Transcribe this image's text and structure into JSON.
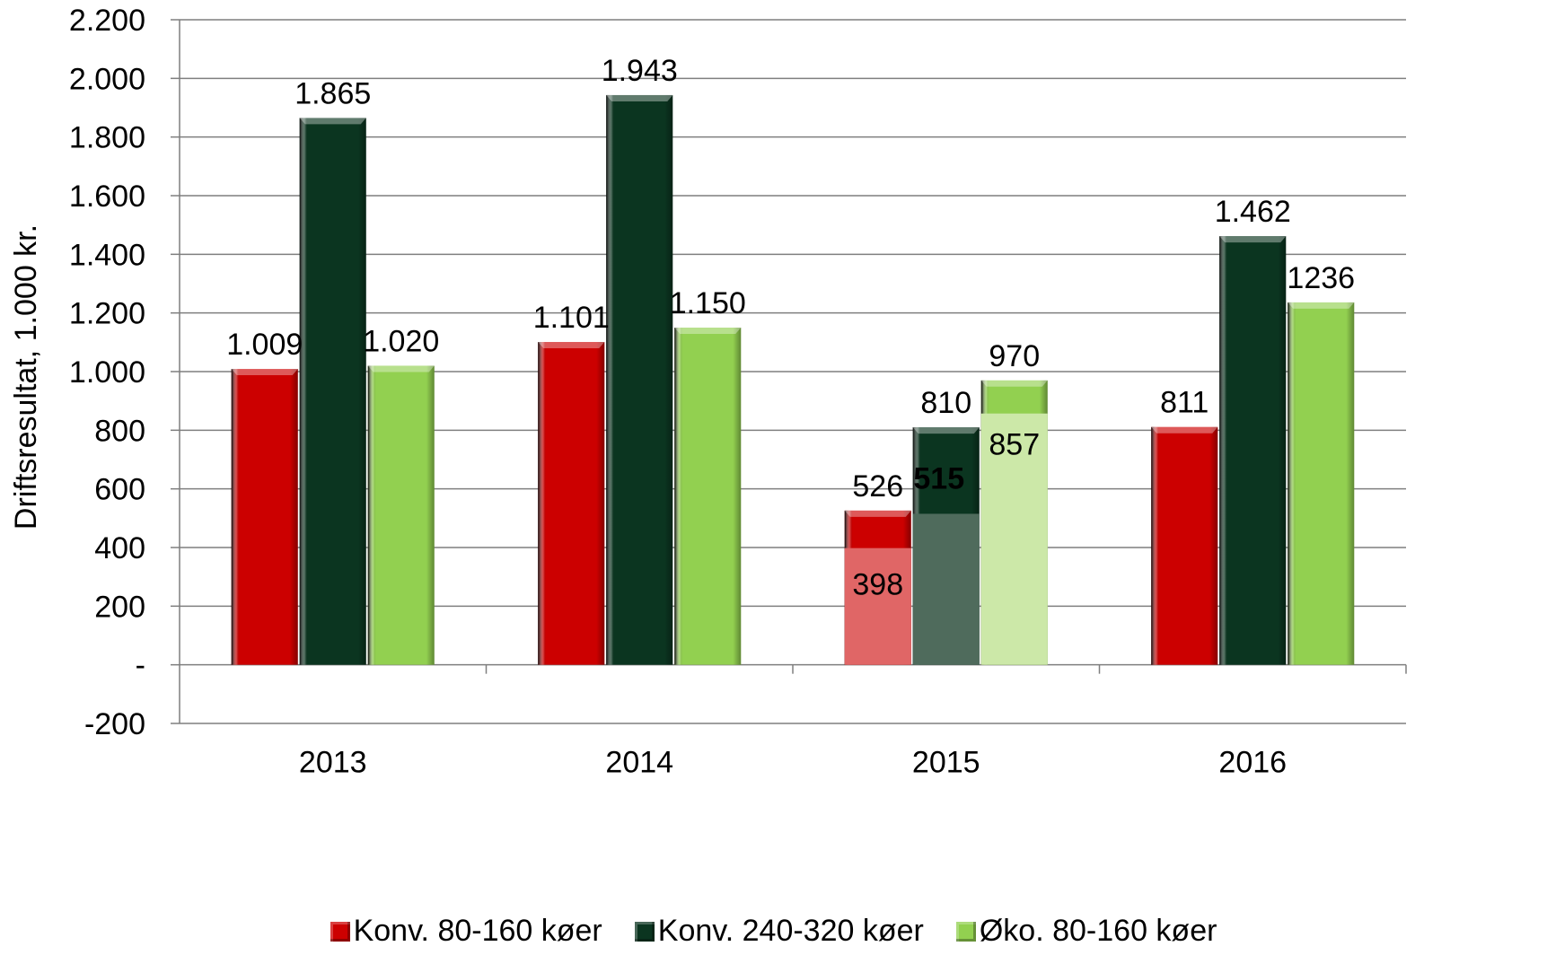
{
  "chart_data": {
    "type": "bar",
    "ylabel": "Driftsresultat, 1.000 kr.",
    "xlabel": "",
    "title": "",
    "ylim": [
      -200,
      2200
    ],
    "yticks": [
      {
        "value": 2200,
        "label": "2.200"
      },
      {
        "value": 2000,
        "label": "2.000"
      },
      {
        "value": 1800,
        "label": "1.800"
      },
      {
        "value": 1600,
        "label": "1.600"
      },
      {
        "value": 1400,
        "label": "1.400"
      },
      {
        "value": 1200,
        "label": "1.200"
      },
      {
        "value": 1000,
        "label": "1.000"
      },
      {
        "value": 800,
        "label": "800"
      },
      {
        "value": 600,
        "label": "600"
      },
      {
        "value": 400,
        "label": "400"
      },
      {
        "value": 200,
        "label": "200"
      },
      {
        "value": 0,
        "label": "-"
      },
      {
        "value": -200,
        "label": "-200"
      }
    ],
    "categories": [
      "2013",
      "2014",
      "2015",
      "2016"
    ],
    "legend_position": "bottom",
    "grid": true,
    "series": [
      {
        "name": "Konv. 80-160 køer",
        "color": "#cc0000",
        "values": [
          1009,
          1101,
          526,
          811
        ],
        "labels": [
          "1.009",
          "1.101",
          "526",
          "811"
        ]
      },
      {
        "name": "Konv. 240-320 køer",
        "color": "#0b3520",
        "values": [
          1865,
          1943,
          810,
          1462
        ],
        "labels": [
          "1.865",
          "1.943",
          "810",
          "1.462"
        ]
      },
      {
        "name": "Øko. 80-160 køer",
        "color": "#92d050",
        "values": [
          1020,
          1150,
          970,
          1236
        ],
        "labels": [
          "1.020",
          "1.150",
          "970",
          "1236"
        ]
      }
    ],
    "overlay": {
      "category": "2015",
      "values": [
        398,
        515,
        857
      ],
      "labels": [
        "398",
        "515",
        "857"
      ],
      "colors": [
        "#e06666",
        "#4f6b5c",
        "#cce8a8"
      ]
    }
  }
}
